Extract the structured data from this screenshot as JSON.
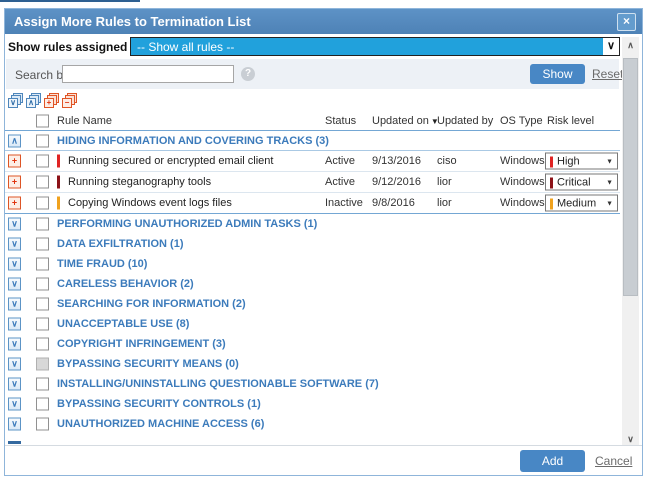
{
  "window": {
    "title": "Assign More Rules to Termination List",
    "close_icon": "×"
  },
  "filter_row": {
    "label": "Show rules assigned to",
    "dropdown_value": "-- Show all rules --",
    "dropdown_arrow": "∨"
  },
  "search_row": {
    "label": "Search by:",
    "input_value": "",
    "help_icon": "?",
    "show_button": "Show",
    "reset_link": "Reset"
  },
  "toolbar": {
    "icons": [
      {
        "name": "expand-all",
        "glyph": "∨",
        "style": "blue"
      },
      {
        "name": "collapse-all",
        "glyph": "∧",
        "style": "blue"
      },
      {
        "name": "add-all",
        "glyph": "+",
        "style": "red"
      },
      {
        "name": "remove-all",
        "glyph": "−",
        "style": "red"
      }
    ]
  },
  "table": {
    "columns": [
      {
        "label": "Rule Name"
      },
      {
        "label": "Status"
      },
      {
        "label": "Updated on",
        "sort": "▼"
      },
      {
        "label": "Updated by"
      },
      {
        "label": "OS Type"
      },
      {
        "label": "Risk level"
      }
    ],
    "expanded_group": {
      "label": "HIDING INFORMATION AND COVERING TRACKS (3)",
      "collapse_glyph": "∧"
    },
    "risk_dropdown_arrow": "▼",
    "rules": [
      {
        "add_glyph": "+",
        "name": "Running secured or encrypted email client",
        "status": "Active",
        "updated_on": "9/13/2016",
        "updated_by": "ciso",
        "os_type": "Windows",
        "risk_level": "High",
        "risk_color": "#e02424"
      },
      {
        "add_glyph": "+",
        "name": "Running steganography tools",
        "status": "Active",
        "updated_on": "9/12/2016",
        "updated_by": "lior",
        "os_type": "Windows",
        "risk_level": "Critical",
        "risk_color": "#8c1218"
      },
      {
        "add_glyph": "+",
        "name": "Copying Windows event logs files",
        "status": "Inactive",
        "updated_on": "9/8/2016",
        "updated_by": "lior",
        "os_type": "Windows",
        "risk_level": "Medium",
        "risk_color": "#f0a21e"
      }
    ],
    "collapsed_groups": [
      {
        "label": "PERFORMING UNAUTHORIZED ADMIN TASKS (1)",
        "expand_glyph": "∨",
        "checkbox_enabled": true
      },
      {
        "label": "DATA EXFILTRATION (1)",
        "expand_glyph": "∨",
        "checkbox_enabled": true
      },
      {
        "label": "TIME FRAUD (10)",
        "expand_glyph": "∨",
        "checkbox_enabled": true
      },
      {
        "label": "CARELESS BEHAVIOR (2)",
        "expand_glyph": "∨",
        "checkbox_enabled": true
      },
      {
        "label": "SEARCHING FOR INFORMATION (2)",
        "expand_glyph": "∨",
        "checkbox_enabled": true
      },
      {
        "label": "UNACCEPTABLE USE (8)",
        "expand_glyph": "∨",
        "checkbox_enabled": true
      },
      {
        "label": "COPYRIGHT INFRINGEMENT (3)",
        "expand_glyph": "∨",
        "checkbox_enabled": true
      },
      {
        "label": "BYPASSING SECURITY MEANS (0)",
        "expand_glyph": "∨",
        "checkbox_enabled": false
      },
      {
        "label": "INSTALLING/UNINSTALLING QUESTIONABLE SOFTWARE (7)",
        "expand_glyph": "∨",
        "checkbox_enabled": true
      },
      {
        "label": "BYPASSING SECURITY CONTROLS (1)",
        "expand_glyph": "∨",
        "checkbox_enabled": true
      },
      {
        "label": "UNAUTHORIZED MACHINE ACCESS (6)",
        "expand_glyph": "∨",
        "checkbox_enabled": true
      }
    ]
  },
  "scrollbar": {
    "up_arrow": "∧",
    "down_arrow": "∨"
  },
  "footer": {
    "add_button": "Add",
    "cancel_link": "Cancel"
  },
  "colors": {
    "titlebar_blue": "#5589c0",
    "accent_blue": "#3c7bbb",
    "dropdown_highlight": "#21a1dc",
    "button_blue": "#4887c5",
    "risk_high": "#e02424",
    "risk_critical": "#8c1218",
    "risk_medium": "#f0a21e"
  }
}
